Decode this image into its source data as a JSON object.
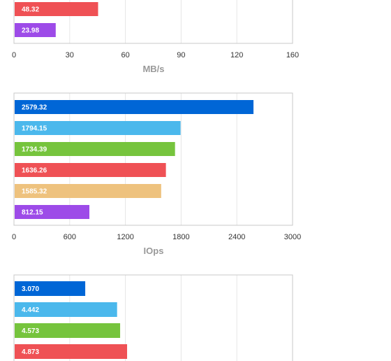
{
  "colors": {
    "blue": "#0066d6",
    "light_blue": "#4bb8ec",
    "green": "#76c43d",
    "red": "#ef5155",
    "orange": "#eec27e",
    "purple": "#9d4be8",
    "grid": "#e6e6e6",
    "frame": "#c8c8c8"
  },
  "chart_data": [
    {
      "type": "bar",
      "orientation": "horizontal",
      "xlabel": "MB/s",
      "xlim": [
        0,
        160
      ],
      "xticks": [
        "0",
        "30",
        "60",
        "90",
        "120",
        "160"
      ],
      "grid": true,
      "series": [
        {
          "value": 48.32,
          "label": "48.32",
          "color": "#ef5155"
        },
        {
          "value": 23.98,
          "label": "23.98",
          "color": "#9d4be8"
        }
      ]
    },
    {
      "type": "bar",
      "orientation": "horizontal",
      "xlabel": "IOps",
      "xlim": [
        0,
        3000
      ],
      "xticks": [
        "0",
        "600",
        "1200",
        "1800",
        "2400",
        "3000"
      ],
      "grid": true,
      "series": [
        {
          "value": 2579.32,
          "label": "2579.32",
          "color": "#0066d6"
        },
        {
          "value": 1794.15,
          "label": "1794.15",
          "color": "#4bb8ec"
        },
        {
          "value": 1734.39,
          "label": "1734.39",
          "color": "#76c43d"
        },
        {
          "value": 1636.26,
          "label": "1636.26",
          "color": "#ef5155"
        },
        {
          "value": 1585.32,
          "label": "1585.32",
          "color": "#eec27e"
        },
        {
          "value": 812.15,
          "label": "812.15",
          "color": "#9d4be8"
        }
      ]
    },
    {
      "type": "bar",
      "orientation": "horizontal",
      "xlabel": "",
      "xlim": [
        0,
        12
      ],
      "grid": true,
      "series": [
        {
          "value": 3.07,
          "label": "3.070",
          "color": "#0066d6"
        },
        {
          "value": 4.442,
          "label": "4.442",
          "color": "#4bb8ec"
        },
        {
          "value": 4.573,
          "label": "4.573",
          "color": "#76c43d"
        },
        {
          "value": 4.873,
          "label": "4.873",
          "color": "#ef5155"
        }
      ]
    }
  ]
}
